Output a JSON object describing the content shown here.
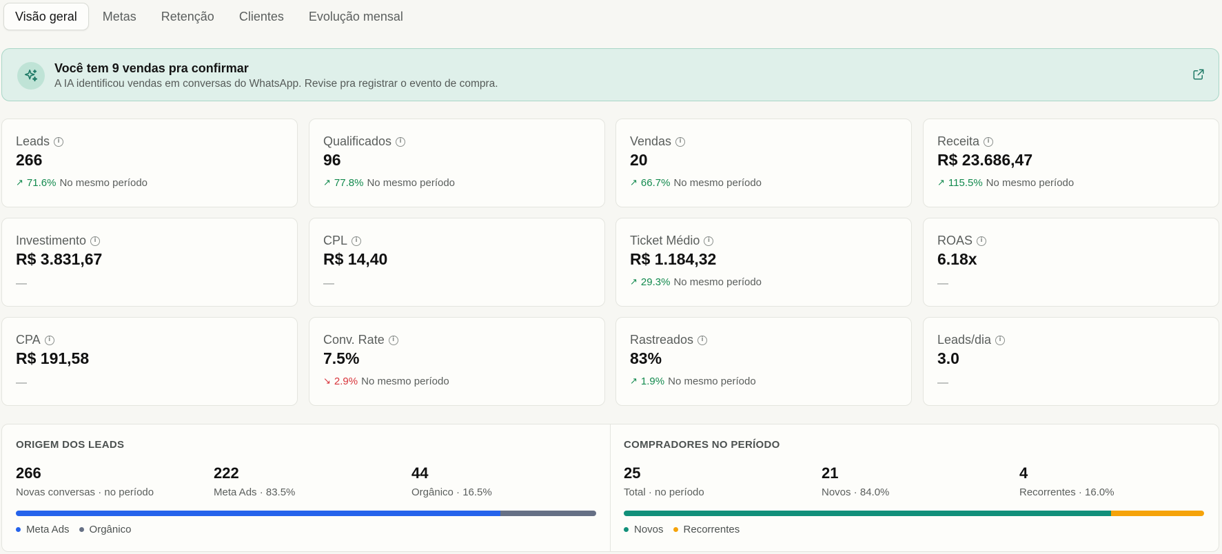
{
  "tabs": [
    {
      "label": "Visão geral",
      "active": true
    },
    {
      "label": "Metas",
      "active": false
    },
    {
      "label": "Retenção",
      "active": false
    },
    {
      "label": "Clientes",
      "active": false
    },
    {
      "label": "Evolução mensal",
      "active": false
    }
  ],
  "banner": {
    "title": "Você tem 9 vendas pra confirmar",
    "subtitle": "A IA identificou vendas em conversas do WhatsApp. Revise pra registrar o evento de compra.",
    "icon": "sparkles-icon",
    "link_icon": "external-link-icon"
  },
  "metrics": [
    {
      "label": "Leads",
      "value": "266",
      "delta": {
        "dir": "up",
        "pct": "71.6%",
        "text": "No mesmo período"
      }
    },
    {
      "label": "Qualificados",
      "value": "96",
      "delta": {
        "dir": "up",
        "pct": "77.8%",
        "text": "No mesmo período"
      }
    },
    {
      "label": "Vendas",
      "value": "20",
      "delta": {
        "dir": "up",
        "pct": "66.7%",
        "text": "No mesmo período"
      }
    },
    {
      "label": "Receita",
      "value": "R$ 23.686,47",
      "delta": {
        "dir": "up",
        "pct": "115.5%",
        "text": "No mesmo período"
      }
    },
    {
      "label": "Investimento",
      "value": "R$ 3.831,67",
      "delta": null,
      "empty": "—"
    },
    {
      "label": "CPL",
      "value": "R$ 14,40",
      "delta": null,
      "empty": "—"
    },
    {
      "label": "Ticket Médio",
      "value": "R$ 1.184,32",
      "delta": {
        "dir": "up",
        "pct": "29.3%",
        "text": "No mesmo período"
      }
    },
    {
      "label": "ROAS",
      "value": "6.18x",
      "delta": null,
      "empty": "—"
    },
    {
      "label": "CPA",
      "value": "R$ 191,58",
      "delta": null,
      "empty": "—"
    },
    {
      "label": "Conv. Rate",
      "value": "7.5%",
      "delta": {
        "dir": "down",
        "pct": "2.9%",
        "text": "No mesmo período"
      }
    },
    {
      "label": "Rastreados",
      "value": "83%",
      "delta": {
        "dir": "up",
        "pct": "1.9%",
        "text": "No mesmo período"
      }
    },
    {
      "label": "Leads/dia",
      "value": "3.0",
      "delta": null,
      "empty": "—"
    }
  ],
  "origem": {
    "heading": "ORIGEM DOS LEADS",
    "stats": [
      {
        "num": "266",
        "cap": "Novas conversas · no período"
      },
      {
        "num": "222",
        "cap": "Meta Ads · 83.5%"
      },
      {
        "num": "44",
        "cap": "Orgânico · 16.5%"
      }
    ],
    "bar": [
      {
        "share": 0.835,
        "color": "#2563eb"
      },
      {
        "share": 0.165,
        "color": "#667085"
      }
    ],
    "legend": [
      {
        "label": "Meta Ads",
        "color": "#2563eb"
      },
      {
        "label": "Orgânico",
        "color": "#667085"
      }
    ]
  },
  "compradores": {
    "heading": "COMPRADORES NO PERÍODO",
    "stats": [
      {
        "num": "25",
        "cap": "Total · no período"
      },
      {
        "num": "21",
        "cap": "Novos · 84.0%"
      },
      {
        "num": "4",
        "cap": "Recorrentes · 16.0%"
      }
    ],
    "bar": [
      {
        "share": 0.84,
        "color": "#12907a"
      },
      {
        "share": 0.16,
        "color": "#f5a30a"
      }
    ],
    "legend": [
      {
        "label": "Novos",
        "color": "#12907a"
      },
      {
        "label": "Recorrentes",
        "color": "#f5a30a"
      }
    ]
  },
  "colors": {
    "accent_up": "#138a4e",
    "accent_down": "#d8343a",
    "banner_bg": "#dff0ea"
  }
}
